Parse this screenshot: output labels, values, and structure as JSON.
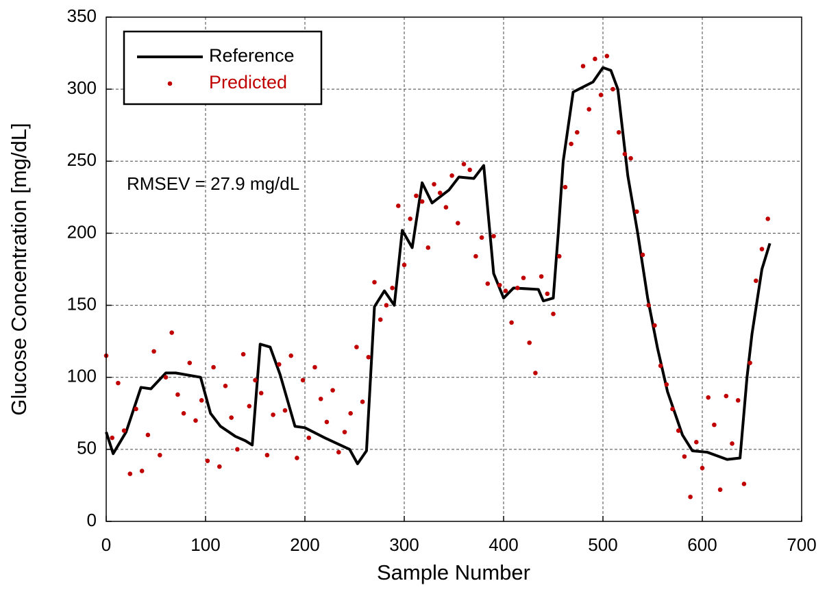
{
  "chart_data": {
    "type": "line",
    "xlabel": "Sample Number",
    "ylabel": "Glucose Concentration  [mg/dL]",
    "annotation": "RMSEV = 27.9 mg/dL",
    "xlim": [
      0,
      700
    ],
    "xticks": [
      0,
      100,
      200,
      300,
      400,
      500,
      600,
      700
    ],
    "ylim": [
      0,
      350
    ],
    "yticks": [
      0,
      50,
      100,
      150,
      200,
      250,
      300,
      350
    ],
    "grid": true,
    "legend": "upper-left",
    "series": [
      {
        "name": "Reference",
        "type": "line",
        "color": "#000000",
        "x": [
          0,
          7,
          20,
          35,
          45,
          60,
          70,
          95,
          105,
          115,
          130,
          140,
          147,
          155,
          165,
          175,
          190,
          200,
          220,
          245,
          253,
          262,
          270,
          280,
          290,
          298,
          308,
          318,
          328,
          345,
          355,
          370,
          380,
          390,
          400,
          410,
          435,
          440,
          450,
          455,
          460,
          470,
          490,
          500,
          508,
          515,
          525,
          535,
          545,
          555,
          565,
          580,
          590,
          605,
          625,
          638,
          645,
          650,
          660,
          668
        ],
        "values": [
          62,
          47,
          62,
          93,
          92,
          103,
          103,
          100,
          75,
          66,
          59,
          56,
          53,
          123,
          121,
          102,
          66,
          65,
          58,
          50,
          40,
          49,
          149,
          160,
          150,
          202,
          190,
          235,
          221,
          230,
          239,
          238,
          247,
          172,
          155,
          162,
          161,
          153,
          155,
          200,
          250,
          298,
          305,
          315,
          313,
          300,
          240,
          200,
          155,
          120,
          90,
          60,
          49,
          48,
          43,
          44,
          100,
          130,
          175,
          193
        ]
      },
      {
        "name": "Predicted",
        "type": "scatter",
        "color": "#c00000",
        "x": [
          0,
          6,
          12,
          18,
          24,
          30,
          36,
          42,
          48,
          54,
          60,
          66,
          72,
          78,
          84,
          90,
          96,
          102,
          108,
          114,
          120,
          126,
          132,
          138,
          144,
          150,
          156,
          162,
          168,
          174,
          180,
          186,
          192,
          198,
          204,
          210,
          216,
          222,
          228,
          234,
          240,
          246,
          252,
          258,
          264,
          270,
          276,
          282,
          288,
          294,
          300,
          306,
          312,
          318,
          324,
          330,
          336,
          342,
          348,
          354,
          360,
          366,
          372,
          378,
          384,
          390,
          396,
          402,
          408,
          414,
          420,
          426,
          432,
          438,
          444,
          450,
          456,
          462,
          468,
          474,
          480,
          486,
          492,
          498,
          504,
          510,
          516,
          522,
          528,
          534,
          540,
          546,
          552,
          558,
          564,
          570,
          576,
          582,
          588,
          594,
          600,
          606,
          612,
          618,
          624,
          630,
          636,
          642,
          648,
          654,
          660,
          666
        ],
        "values": [
          115,
          58,
          96,
          63,
          33,
          78,
          35,
          60,
          118,
          46,
          100,
          131,
          88,
          75,
          110,
          70,
          84,
          42,
          107,
          38,
          94,
          72,
          50,
          116,
          80,
          98,
          89,
          46,
          74,
          109,
          77,
          115,
          44,
          98,
          58,
          107,
          85,
          69,
          91,
          48,
          62,
          75,
          121,
          83,
          114,
          166,
          140,
          150,
          162,
          219,
          178,
          210,
          226,
          222,
          190,
          234,
          228,
          218,
          240,
          207,
          248,
          244,
          184,
          197,
          165,
          198,
          164,
          160,
          138,
          162,
          169,
          124,
          103,
          170,
          158,
          144,
          184,
          232,
          262,
          270,
          316,
          286,
          321,
          296,
          323,
          300,
          270,
          255,
          252,
          215,
          185,
          150,
          136,
          108,
          95,
          78,
          63,
          45,
          17,
          55,
          37,
          86,
          67,
          22,
          87,
          54,
          84,
          26,
          110,
          167,
          189,
          210
        ]
      }
    ]
  }
}
